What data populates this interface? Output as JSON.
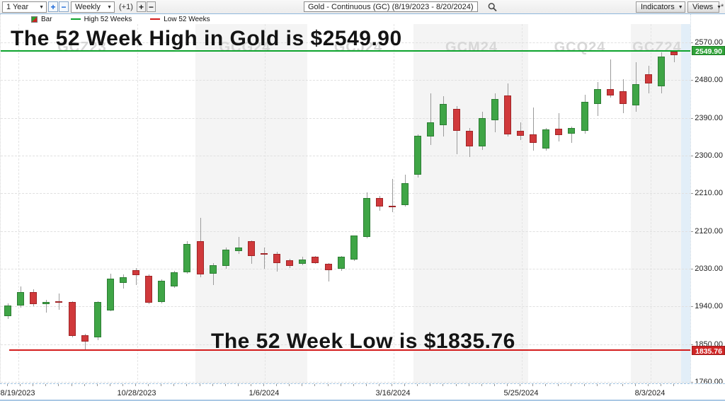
{
  "toolbar": {
    "range_select": "1 Year",
    "range_zoom_in": "+",
    "range_zoom_out": "−",
    "period_select": "Weekly",
    "offset_label": "(+1)",
    "offset_plus": "+",
    "offset_minus": "−",
    "symbol_title": "Gold - Continuous (GC) (8/19/2023 - 8/20/2024)",
    "indicators_button": "Indicators",
    "views_button": "Views",
    "corner_asterisk": "*"
  },
  "legend": {
    "bar_label": "Bar",
    "high_label": "High 52 Weeks",
    "low_label": "Low 52 Weeks"
  },
  "annotations": {
    "high_text": "The 52 Week High in Gold is $2549.90",
    "low_text": "The 52 Week Low is $1835.76"
  },
  "watermarks": [
    "GCZ23",
    "GCG24",
    "GCJ24",
    "GCM24",
    "GCQ24",
    "GCZ24"
  ],
  "y_axis": {
    "labels": [
      "2570.00",
      "2480.00",
      "2390.00",
      "2300.00",
      "2210.00",
      "2120.00",
      "2030.00",
      "1940.00",
      "1850.00",
      "1760.00"
    ],
    "high_badge": "2549.90",
    "low_badge": "1835.76"
  },
  "x_axis": {
    "labels": [
      "8/19/2023",
      "10/28/2023",
      "1/6/2024",
      "3/16/2024",
      "5/25/2024",
      "8/3/2024"
    ]
  },
  "colors": {
    "up": "#3fa546",
    "down": "#d0393b",
    "high_line": "#0ca32c",
    "low_line": "#d41c1c",
    "watermark": "#d7d7d7"
  },
  "chart_data": {
    "type": "candlestick",
    "title": "Gold - Continuous (GC)",
    "period": "Weekly",
    "date_range": [
      "8/19/2023",
      "8/20/2024"
    ],
    "high_52_weeks": 2549.9,
    "low_52_weeks": 1835.76,
    "ylim": [
      1760,
      2570
    ],
    "y_ticks": [
      2570,
      2480,
      2390,
      2300,
      2210,
      2120,
      2030,
      1940,
      1850,
      1760
    ],
    "x_tick_labels": [
      "8/19/2023",
      "10/28/2023",
      "1/6/2024",
      "3/16/2024",
      "5/25/2024",
      "8/3/2024"
    ],
    "grid": true,
    "bars_format": [
      "date",
      "open",
      "high",
      "low",
      "close"
    ],
    "bars": [
      [
        "8/19/2023",
        1917,
        1948,
        1910,
        1943
      ],
      [
        "8/26/2023",
        1943,
        1988,
        1938,
        1974
      ],
      [
        "9/2/2023",
        1975,
        1981,
        1940,
        1946
      ],
      [
        "9/9/2023",
        1946,
        1956,
        1926,
        1950
      ],
      [
        "9/16/2023",
        1952,
        1971,
        1932,
        1951
      ],
      [
        "9/23/2023",
        1951,
        1953,
        1866,
        1870
      ],
      [
        "9/30/2023",
        1871,
        1875,
        1835.76,
        1856
      ],
      [
        "10/7/2023",
        1866,
        1953,
        1860,
        1951
      ],
      [
        "10/14/2023",
        1930,
        2019,
        1928,
        2006
      ],
      [
        "10/21/2023",
        1997,
        2016,
        1982,
        2009
      ],
      [
        "10/28/2023",
        2026,
        2032,
        1991,
        2014
      ],
      [
        "11/4/2023",
        2013,
        2016,
        1945,
        1949
      ],
      [
        "11/11/2023",
        1951,
        2005,
        1948,
        2002
      ],
      [
        "11/18/2023",
        1988,
        2025,
        1985,
        2022
      ],
      [
        "11/25/2023",
        2022,
        2095,
        2018,
        2089
      ],
      [
        "12/2/2023",
        2095,
        2152,
        2010,
        2016
      ],
      [
        "12/9/2023",
        2019,
        2044,
        1991,
        2038
      ],
      [
        "12/16/2023",
        2036,
        2080,
        2030,
        2076
      ],
      [
        "12/23/2023",
        2073,
        2106,
        2066,
        2081
      ],
      [
        "12/30/2023",
        2095,
        2098,
        2041,
        2061
      ],
      [
        "1/6/2024",
        2067,
        2081,
        2030,
        2066
      ],
      [
        "1/13/2024",
        2066,
        2071,
        2024,
        2044
      ],
      [
        "1/20/2024",
        2050,
        2053,
        2032,
        2036
      ],
      [
        "1/27/2024",
        2041,
        2058,
        2038,
        2052
      ],
      [
        "2/3/2024",
        2058,
        2061,
        2042,
        2043
      ],
      [
        "2/10/2024",
        2041,
        2044,
        1999,
        2027
      ],
      [
        "2/17/2024",
        2030,
        2060,
        2025,
        2058
      ],
      [
        "2/24/2024",
        2052,
        2110,
        2048,
        2109
      ],
      [
        "3/2/2024",
        2106,
        2212,
        2102,
        2199
      ],
      [
        "3/9/2024",
        2199,
        2204,
        2168,
        2179
      ],
      [
        "3/16/2024",
        2180,
        2244,
        2165,
        2178
      ],
      [
        "3/23/2024",
        2182,
        2255,
        2178,
        2235
      ],
      [
        "3/30/2024",
        2255,
        2350,
        2247,
        2348
      ],
      [
        "4/6/2024",
        2345,
        2449,
        2325,
        2379
      ],
      [
        "4/13/2024",
        2373,
        2441,
        2345,
        2424
      ],
      [
        "4/20/2024",
        2412,
        2418,
        2303,
        2359
      ],
      [
        "4/27/2024",
        2359,
        2365,
        2297,
        2322
      ],
      [
        "5/4/2024",
        2322,
        2404,
        2314,
        2390
      ],
      [
        "5/11/2024",
        2384,
        2449,
        2356,
        2435
      ],
      [
        "5/18/2024",
        2443,
        2472,
        2345,
        2351
      ],
      [
        "5/25/2024",
        2359,
        2379,
        2337,
        2348
      ],
      [
        "6/1/2024",
        2351,
        2415,
        2311,
        2331
      ],
      [
        "6/8/2024",
        2317,
        2365,
        2311,
        2362
      ],
      [
        "6/15/2024",
        2364,
        2401,
        2334,
        2349
      ],
      [
        "6/22/2024",
        2353,
        2370,
        2331,
        2366
      ],
      [
        "6/29/2024",
        2359,
        2445,
        2352,
        2429
      ],
      [
        "7/6/2024",
        2424,
        2476,
        2394,
        2459
      ],
      [
        "7/13/2024",
        2459,
        2530,
        2438,
        2443
      ],
      [
        "7/20/2024",
        2453,
        2483,
        2401,
        2423
      ],
      [
        "7/27/2024",
        2419,
        2522,
        2404,
        2470
      ],
      [
        "8/3/2024",
        2494,
        2514,
        2449,
        2472
      ],
      [
        "8/10/2024",
        2466,
        2546,
        2449,
        2536
      ],
      [
        "8/17/2024",
        2548,
        2549.9,
        2522,
        2539
      ]
    ]
  }
}
